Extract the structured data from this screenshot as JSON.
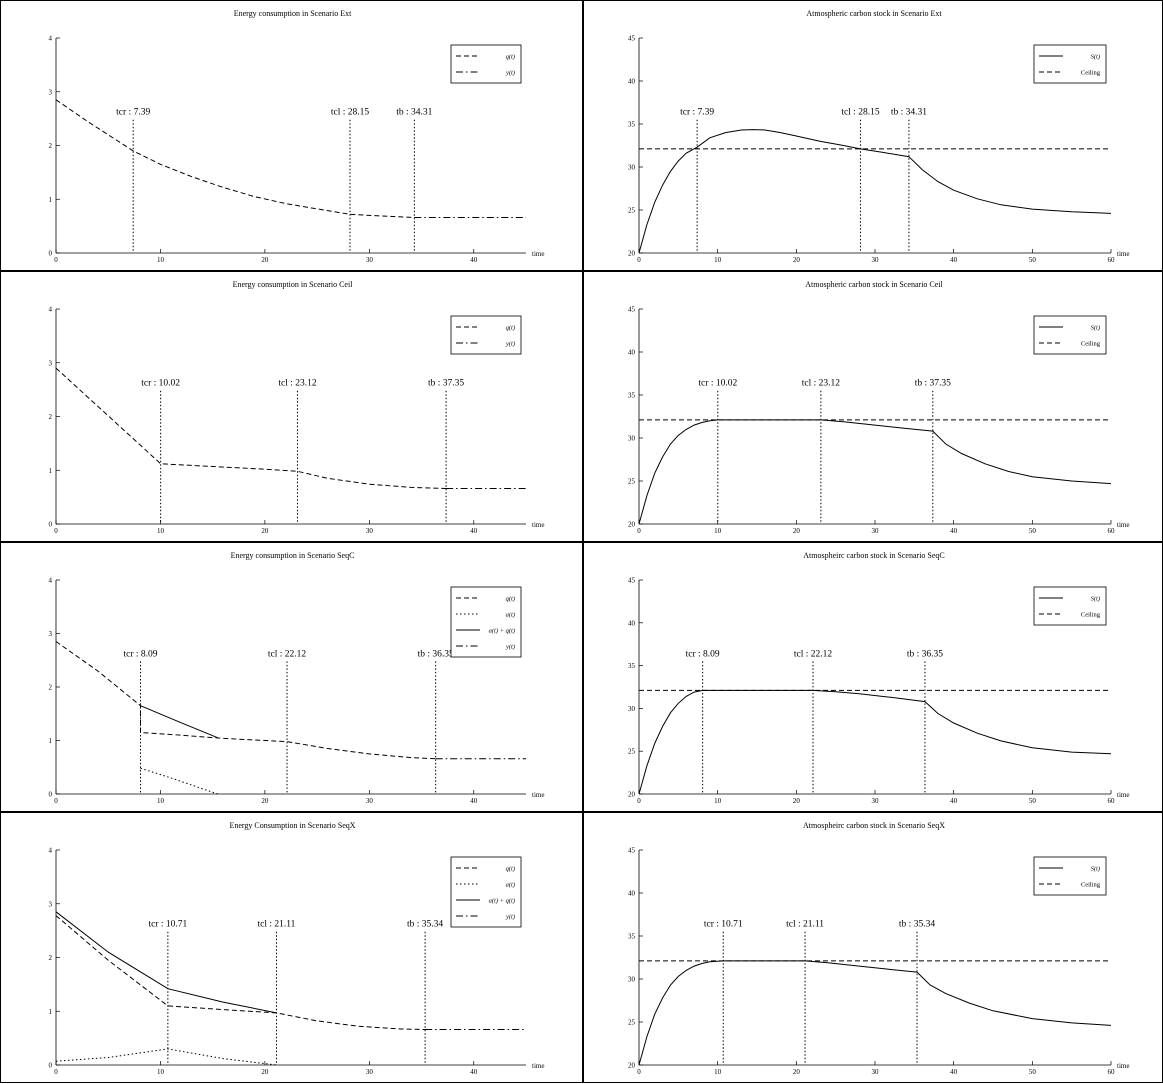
{
  "chart_data": [
    {
      "type": "line",
      "title": "Energy consumption in Scenario Ext",
      "xlabel": "time",
      "xlim": [
        0,
        45
      ],
      "ylim": [
        0,
        4
      ],
      "xticks": [
        0,
        10,
        20,
        30,
        40
      ],
      "yticks": [
        0,
        1,
        2,
        3,
        4
      ],
      "legend": "top-right",
      "series": [
        {
          "name": "q(t)",
          "style": "dashed",
          "x": [
            0,
            3,
            5,
            7.39,
            10,
            13,
            16,
            19,
            22,
            25,
            28.15,
            30,
            34.31
          ],
          "y": [
            2.85,
            2.45,
            2.2,
            1.9,
            1.65,
            1.42,
            1.22,
            1.05,
            0.92,
            0.82,
            0.72,
            0.7,
            0.66
          ]
        },
        {
          "name": "y(t)",
          "style": "dashdot",
          "x": [
            34.31,
            45
          ],
          "y": [
            0.66,
            0.66
          ]
        }
      ],
      "markers": [
        {
          "label": "tcr : 7.39",
          "x": 7.39
        },
        {
          "label": "tcl : 28.15",
          "x": 28.15
        },
        {
          "label": "tb : 34.31",
          "x": 34.31
        }
      ]
    },
    {
      "type": "line",
      "title": "Atmospheric carbon stock in Scenario Ext",
      "xlabel": "time",
      "xlim": [
        0,
        60
      ],
      "ylim": [
        20,
        45
      ],
      "xticks": [
        0,
        10,
        20,
        30,
        40,
        50,
        60
      ],
      "yticks": [
        20,
        25,
        30,
        35,
        40,
        45
      ],
      "legend": "top-right",
      "series": [
        {
          "name": "S(t)",
          "style": "solid",
          "x": [
            0,
            1,
            2,
            3,
            4,
            5,
            6,
            7.39,
            9,
            11,
            13,
            14.5,
            16,
            18,
            20,
            23,
            26,
            28.15,
            31,
            34.31,
            36,
            38,
            40,
            43,
            46,
            50,
            55,
            60
          ],
          "y": [
            20,
            23.3,
            25.9,
            27.9,
            29.5,
            30.7,
            31.6,
            32.3,
            33.4,
            34.0,
            34.3,
            34.35,
            34.3,
            34.0,
            33.6,
            33.0,
            32.5,
            32.1,
            31.7,
            31.2,
            29.7,
            28.3,
            27.3,
            26.3,
            25.6,
            25.1,
            24.8,
            24.6
          ]
        },
        {
          "name": "Ceiling",
          "style": "dashed",
          "x": [
            0,
            60
          ],
          "y": [
            32.1,
            32.1
          ]
        }
      ],
      "markers": [
        {
          "label": "tcr : 7.39",
          "x": 7.39
        },
        {
          "label": "tcl : 28.15",
          "x": 28.15
        },
        {
          "label": "tb : 34.31",
          "x": 34.31
        }
      ]
    },
    {
      "type": "line",
      "title": "Energy consumption in Scenario Ceil",
      "xlabel": "time",
      "xlim": [
        0,
        45
      ],
      "ylim": [
        0,
        4
      ],
      "xticks": [
        0,
        10,
        20,
        30,
        40
      ],
      "yticks": [
        0,
        1,
        2,
        3,
        4
      ],
      "legend": "top-right",
      "series": [
        {
          "name": "q(t)",
          "style": "dashed",
          "x": [
            0,
            10.02,
            15,
            20,
            23.12,
            26,
            30,
            34,
            37.35
          ],
          "y": [
            2.9,
            1.12,
            1.07,
            1.02,
            0.98,
            0.85,
            0.74,
            0.68,
            0.66
          ]
        },
        {
          "name": "y(t)",
          "style": "dashdot",
          "x": [
            37.35,
            45
          ],
          "y": [
            0.66,
            0.66
          ]
        }
      ],
      "markers": [
        {
          "label": "tcr : 10.02",
          "x": 10.02
        },
        {
          "label": "tcl : 23.12",
          "x": 23.12
        },
        {
          "label": "tb : 37.35",
          "x": 37.35
        }
      ]
    },
    {
      "type": "line",
      "title": "Atmospheric carbon stock in Scenario Ceil",
      "xlabel": "time",
      "xlim": [
        0,
        60
      ],
      "ylim": [
        20,
        45
      ],
      "xticks": [
        0,
        10,
        20,
        30,
        40,
        50,
        60
      ],
      "yticks": [
        20,
        25,
        30,
        35,
        40,
        45
      ],
      "legend": "top-right",
      "series": [
        {
          "name": "S(t)",
          "style": "solid",
          "x": [
            0,
            1,
            2,
            3,
            4,
            5,
            6,
            7,
            8,
            9,
            10.02,
            15,
            20,
            23.12,
            26,
            30,
            34,
            37.35,
            39,
            41,
            44,
            47,
            50,
            55,
            60
          ],
          "y": [
            20,
            23.3,
            25.9,
            27.8,
            29.3,
            30.3,
            31.0,
            31.5,
            31.8,
            32.0,
            32.1,
            32.1,
            32.1,
            32.1,
            31.9,
            31.5,
            31.1,
            30.8,
            29.3,
            28.2,
            27.0,
            26.1,
            25.5,
            25.0,
            24.7
          ]
        },
        {
          "name": "Ceiling",
          "style": "dashed",
          "x": [
            0,
            60
          ],
          "y": [
            32.1,
            32.1
          ]
        }
      ],
      "markers": [
        {
          "label": "tcr : 10.02",
          "x": 10.02
        },
        {
          "label": "tcl : 23.12",
          "x": 23.12
        },
        {
          "label": "tb : 37.35",
          "x": 37.35
        }
      ]
    },
    {
      "type": "line",
      "title": "Energy consumption in Scenario SeqC",
      "xlabel": "time",
      "xlim": [
        0,
        45
      ],
      "ylim": [
        0,
        4
      ],
      "xticks": [
        0,
        10,
        20,
        30,
        40
      ],
      "yticks": [
        0,
        1,
        2,
        3,
        4
      ],
      "legend": "top-right",
      "series": [
        {
          "name": "q(t)",
          "style": "dashed",
          "x": [
            0,
            4,
            8.09,
            8.09,
            12,
            16,
            20,
            22.12,
            26,
            30,
            34,
            36.35
          ],
          "y": [
            2.85,
            2.3,
            1.65,
            1.15,
            1.1,
            1.04,
            1.0,
            0.98,
            0.85,
            0.75,
            0.68,
            0.66
          ]
        },
        {
          "name": "a(t)",
          "style": "dotted",
          "x": [
            8.09,
            11,
            14,
            15.5
          ],
          "y": [
            0.48,
            0.3,
            0.1,
            0
          ]
        },
        {
          "name": "a(t) + q(t)",
          "style": "solid",
          "x": [
            8.09,
            12,
            15.5
          ],
          "y": [
            1.65,
            1.33,
            1.05
          ]
        },
        {
          "name": "y(t)",
          "style": "dashdot",
          "x": [
            36.35,
            45
          ],
          "y": [
            0.66,
            0.66
          ]
        }
      ],
      "markers": [
        {
          "label": "tcr : 8.09",
          "x": 8.09
        },
        {
          "label": "tcl : 22.12",
          "x": 22.12
        },
        {
          "label": "tb : 36.35",
          "x": 36.35
        }
      ]
    },
    {
      "type": "line",
      "title": "Atmospheirc carbon stock in Scenario SeqC",
      "xlabel": "time",
      "xlim": [
        0,
        60
      ],
      "ylim": [
        20,
        45
      ],
      "xticks": [
        0,
        10,
        20,
        30,
        40,
        50,
        60
      ],
      "yticks": [
        20,
        25,
        30,
        35,
        40,
        45
      ],
      "legend": "top-right",
      "series": [
        {
          "name": "S(t)",
          "style": "solid",
          "x": [
            0,
            1,
            2,
            3,
            4,
            5,
            6,
            7,
            8.09,
            12,
            16,
            20,
            22.12,
            25,
            28,
            32,
            36.35,
            38,
            40,
            43,
            46,
            50,
            55,
            60
          ],
          "y": [
            20,
            23.3,
            25.9,
            27.9,
            29.5,
            30.6,
            31.4,
            31.9,
            32.1,
            32.1,
            32.1,
            32.1,
            32.1,
            31.95,
            31.7,
            31.3,
            30.8,
            29.4,
            28.3,
            27.1,
            26.2,
            25.4,
            24.9,
            24.7
          ]
        },
        {
          "name": "Ceiling",
          "style": "dashed",
          "x": [
            0,
            60
          ],
          "y": [
            32.1,
            32.1
          ]
        }
      ],
      "markers": [
        {
          "label": "tcr : 8.09",
          "x": 8.09
        },
        {
          "label": "tcl : 22.12",
          "x": 22.12
        },
        {
          "label": "tb : 36.35",
          "x": 36.35
        }
      ]
    },
    {
      "type": "line",
      "title": "Energy Consumption in Scenario SeqX",
      "xlabel": "time",
      "xlim": [
        0,
        45
      ],
      "ylim": [
        0,
        4
      ],
      "xticks": [
        0,
        10,
        20,
        30,
        40
      ],
      "yticks": [
        0,
        1,
        2,
        3,
        4
      ],
      "legend": "top-right",
      "series": [
        {
          "name": "q(t)",
          "style": "dashed",
          "x": [
            0,
            5,
            10.71,
            16,
            21.11,
            25,
            29,
            33,
            35.34
          ],
          "y": [
            2.78,
            1.95,
            1.1,
            1.03,
            0.97,
            0.82,
            0.72,
            0.67,
            0.66
          ]
        },
        {
          "name": "a(t)",
          "style": "dotted",
          "x": [
            0,
            5,
            10.71,
            16,
            21.11
          ],
          "y": [
            0.07,
            0.14,
            0.3,
            0.12,
            0
          ]
        },
        {
          "name": "a(t) + q(t)",
          "style": "solid",
          "x": [
            0,
            5,
            10.71,
            16,
            21.11
          ],
          "y": [
            2.85,
            2.1,
            1.42,
            1.17,
            0.97
          ]
        },
        {
          "name": "y(t)",
          "style": "dashdot",
          "x": [
            35.34,
            45
          ],
          "y": [
            0.66,
            0.66
          ]
        }
      ],
      "markers": [
        {
          "label": "tcr : 10.71",
          "x": 10.71
        },
        {
          "label": "tcl : 21.11",
          "x": 21.11
        },
        {
          "label": "tb : 35.34",
          "x": 35.34
        }
      ]
    },
    {
      "type": "line",
      "title": "Atmospheirc carbon stock in Scenario SeqX",
      "xlabel": "time",
      "xlim": [
        0,
        60
      ],
      "ylim": [
        20,
        45
      ],
      "xticks": [
        0,
        10,
        20,
        30,
        40,
        50,
        60
      ],
      "yticks": [
        20,
        25,
        30,
        35,
        40,
        45
      ],
      "legend": "top-right",
      "series": [
        {
          "name": "S(t)",
          "style": "solid",
          "x": [
            0,
            1,
            2,
            3,
            4,
            5,
            6,
            7,
            8,
            9,
            10.71,
            15,
            19,
            21.11,
            24,
            28,
            32,
            35.34,
            37,
            39,
            42,
            45,
            50,
            55,
            60
          ],
          "y": [
            20,
            23.3,
            25.9,
            27.8,
            29.3,
            30.3,
            31.0,
            31.5,
            31.8,
            32.0,
            32.1,
            32.1,
            32.1,
            32.1,
            31.9,
            31.5,
            31.1,
            30.8,
            29.3,
            28.3,
            27.2,
            26.3,
            25.4,
            24.9,
            24.6
          ]
        },
        {
          "name": "Ceiling",
          "style": "dashed",
          "x": [
            0,
            60
          ],
          "y": [
            32.1,
            32.1
          ]
        }
      ],
      "markers": [
        {
          "label": "tcr : 10.71",
          "x": 10.71
        },
        {
          "label": "tcl : 21.11",
          "x": 21.11
        },
        {
          "label": "tb : 35.34",
          "x": 35.34
        }
      ]
    }
  ]
}
